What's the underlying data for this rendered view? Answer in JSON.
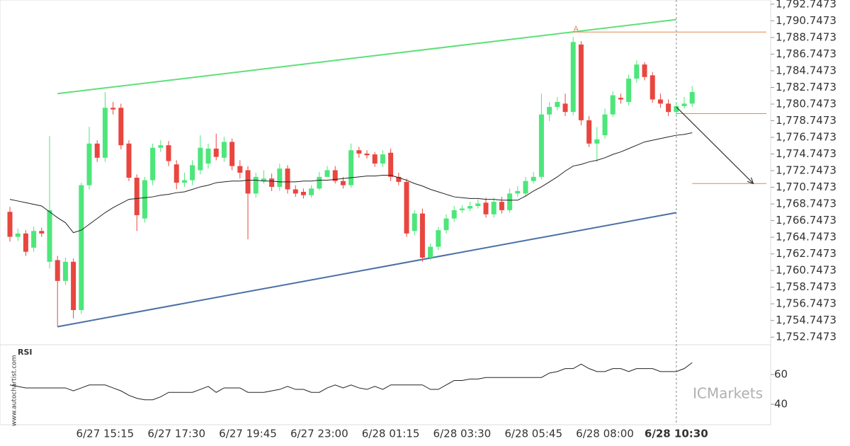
{
  "chart_data": [
    {
      "type": "candlestick",
      "categories": [
        null,
        null,
        null,
        null,
        null,
        null,
        null,
        null,
        null,
        null,
        null,
        null,
        "6/27 15:15",
        null,
        null,
        null,
        null,
        null,
        null,
        null,
        null,
        "6/27 17:30",
        null,
        null,
        null,
        null,
        null,
        null,
        null,
        null,
        "6/27 19:45",
        null,
        null,
        null,
        null,
        null,
        null,
        null,
        null,
        "6/27 23:00",
        null,
        null,
        null,
        null,
        null,
        null,
        null,
        null,
        "6/28 01:15",
        null,
        null,
        null,
        null,
        null,
        null,
        null,
        null,
        "6/28 03:30",
        null,
        null,
        null,
        null,
        null,
        null,
        null,
        null,
        "6/28 05:45",
        null,
        null,
        null,
        null,
        null,
        null,
        null,
        null,
        "6/28 08:00",
        null,
        null,
        null,
        null,
        null,
        null,
        null,
        null,
        "6/28 10:30",
        null,
        null
      ],
      "open": [
        1767.8,
        1764.8,
        1765.2,
        1763.5,
        1765.5,
        1761.8,
        1762.0,
        1759.5,
        1761.8,
        1756.0,
        1771.0,
        1776.0,
        1774.3,
        1780.3,
        1780.3,
        1776.0,
        1771.9,
        1767.0,
        1771.6,
        1775.5,
        1775.8,
        1773.5,
        1771.3,
        1771.6,
        1772.8,
        1773.6,
        1775.4,
        1774.3,
        1776.2,
        1773.3,
        1772.8,
        1770.0,
        1771.5,
        1771.8,
        1770.8,
        1773.0,
        1770.5,
        1770.2,
        1769.8,
        1770.6,
        1772.0,
        1772.8,
        1771.5,
        1771.0,
        1775.2,
        1774.8,
        1774.7,
        1773.6,
        1774.9,
        1772.0,
        1771.4,
        1765.5,
        1767.6,
        1762.3,
        1763.6,
        1765.6,
        1767.0,
        1768.0,
        1768.2,
        1768.5,
        1768.9,
        1767.5,
        1769.0,
        1768.0,
        1770.0,
        1770.0,
        1771.5,
        1772.0,
        1779.5,
        1780.4,
        1780.8,
        1779.8,
        1787.9,
        1778.8,
        1776.0,
        1777.0,
        1779.5,
        1781.5,
        1781.0,
        1783.8,
        1785.5,
        1784.2,
        1781.3,
        1780.8,
        1779.8,
        1780.5,
        1780.8
      ],
      "high": [
        1768.4,
        1765.8,
        1765.6,
        1766.0,
        1765.9,
        1776.9,
        1762.5,
        1762.3,
        1762.2,
        1771.3,
        1778.0,
        1776.4,
        1782.2,
        1781.0,
        1780.8,
        1776.4,
        1772.3,
        1772.0,
        1776.0,
        1776.4,
        1776.3,
        1774.0,
        1772.5,
        1774.0,
        1777.0,
        1776.0,
        1777.2,
        1776.8,
        1776.6,
        1774.0,
        1773.3,
        1772.5,
        1772.8,
        1772.4,
        1773.6,
        1773.4,
        1771.0,
        1770.6,
        1771.0,
        1772.6,
        1773.3,
        1773.3,
        1772.0,
        1776.0,
        1775.6,
        1775.2,
        1775.0,
        1775.2,
        1775.4,
        1772.5,
        1771.8,
        1768.0,
        1768.2,
        1764.0,
        1766.0,
        1767.5,
        1768.5,
        1768.6,
        1769.0,
        1769.3,
        1769.5,
        1769.5,
        1769.6,
        1770.6,
        1770.9,
        1772.0,
        1772.6,
        1782.0,
        1781.0,
        1781.6,
        1782.0,
        1788.8,
        1788.3,
        1779.3,
        1778.0,
        1780.2,
        1782.3,
        1782.0,
        1784.3,
        1786.0,
        1785.8,
        1784.6,
        1782.0,
        1781.3,
        1781.0,
        1781.6,
        1782.9
      ],
      "low": [
        1764.2,
        1764.3,
        1762.5,
        1763.0,
        1764.8,
        1761.0,
        1754.0,
        1759.0,
        1755.0,
        1755.5,
        1770.5,
        1773.8,
        1773.8,
        1779.5,
        1775.3,
        1771.5,
        1765.5,
        1766.5,
        1771.0,
        1775.0,
        1773.3,
        1770.5,
        1770.8,
        1771.0,
        1772.3,
        1773.0,
        1774.0,
        1773.8,
        1772.8,
        1771.8,
        1764.5,
        1769.5,
        1771.2,
        1770.3,
        1770.3,
        1770.0,
        1769.6,
        1769.4,
        1769.5,
        1770.4,
        1772.2,
        1771.2,
        1770.6,
        1770.7,
        1774.3,
        1774.2,
        1773.2,
        1773.2,
        1771.5,
        1771.0,
        1764.8,
        1765.0,
        1761.8,
        1762.0,
        1763.2,
        1765.2,
        1766.6,
        1767.7,
        1767.9,
        1768.2,
        1767.1,
        1767.1,
        1767.6,
        1767.7,
        1769.6,
        1769.6,
        1771.2,
        1771.7,
        1778.7,
        1780.0,
        1779.3,
        1779.4,
        1778.2,
        1775.6,
        1773.8,
        1776.6,
        1779.2,
        1780.8,
        1780.6,
        1783.3,
        1783.6,
        1780.9,
        1780.3,
        1779.3,
        1779.4,
        1780.2,
        1780.4
      ],
      "close": [
        1764.8,
        1765.2,
        1763.0,
        1765.5,
        1765.2,
        1768.0,
        1759.5,
        1761.8,
        1756.0,
        1771.0,
        1776.0,
        1774.3,
        1780.3,
        1780.1,
        1775.8,
        1771.9,
        1767.4,
        1771.6,
        1775.5,
        1775.8,
        1773.9,
        1771.3,
        1771.6,
        1773.4,
        1775.5,
        1775.4,
        1774.4,
        1776.2,
        1773.3,
        1772.5,
        1770.0,
        1772.0,
        1771.8,
        1770.8,
        1773.0,
        1770.5,
        1770.0,
        1769.8,
        1770.6,
        1772.0,
        1772.8,
        1771.5,
        1771.0,
        1775.2,
        1774.8,
        1774.6,
        1773.6,
        1774.7,
        1772.0,
        1771.4,
        1765.2,
        1767.6,
        1762.3,
        1763.6,
        1765.6,
        1767.0,
        1768.0,
        1768.2,
        1768.5,
        1768.8,
        1767.5,
        1769.0,
        1768.0,
        1770.0,
        1770.3,
        1771.5,
        1772.0,
        1779.5,
        1780.4,
        1781.0,
        1779.8,
        1788.2,
        1778.8,
        1776.0,
        1776.5,
        1779.5,
        1781.8,
        1781.3,
        1783.8,
        1785.5,
        1784.0,
        1781.3,
        1780.8,
        1779.8,
        1780.5,
        1780.8,
        1782.2
      ],
      "ma": [
        1769.3,
        1769.1,
        1768.9,
        1768.7,
        1768.5,
        1767.8,
        1767.1,
        1766.5,
        1765.3,
        1765.6,
        1766.3,
        1767.0,
        1767.7,
        1768.3,
        1768.8,
        1769.3,
        1769.4,
        1769.5,
        1769.6,
        1769.8,
        1769.9,
        1770.1,
        1770.2,
        1770.5,
        1770.8,
        1771.0,
        1771.3,
        1771.4,
        1771.5,
        1771.5,
        1771.6,
        1771.6,
        1771.5,
        1771.5,
        1771.4,
        1771.4,
        1771.4,
        1771.5,
        1771.5,
        1771.6,
        1771.6,
        1771.7,
        1771.8,
        1771.9,
        1772.0,
        1772.1,
        1772.1,
        1772.2,
        1772.2,
        1771.9,
        1771.6,
        1771.2,
        1770.9,
        1770.5,
        1770.2,
        1769.9,
        1769.6,
        1769.5,
        1769.4,
        1769.4,
        1769.3,
        1769.3,
        1769.2,
        1769.2,
        1769.2,
        1769.7,
        1770.3,
        1770.8,
        1771.4,
        1772.0,
        1772.7,
        1773.3,
        1773.5,
        1773.8,
        1774.0,
        1774.3,
        1774.7,
        1775.0,
        1775.4,
        1775.8,
        1776.2,
        1776.4,
        1776.6,
        1776.8,
        1777.0,
        1777.1,
        1777.3
      ],
      "up_color": "#4de67a",
      "down_color": "#e8463f",
      "ma_color": "#222222",
      "ylim": [
        1752.0,
        1793.25
      ],
      "yticks": [
        {
          "value": 1752.7473,
          "label": "1,752.7473"
        },
        {
          "value": 1754.7473,
          "label": "1,754.7473"
        },
        {
          "value": 1756.7473,
          "label": "1,756.7473"
        },
        {
          "value": 1758.7473,
          "label": "1,758.7473"
        },
        {
          "value": 1760.7473,
          "label": "1,760.7473"
        },
        {
          "value": 1762.7473,
          "label": "1,762.7473"
        },
        {
          "value": 1764.7473,
          "label": "1,764.7473"
        },
        {
          "value": 1766.7473,
          "label": "1,766.7473"
        },
        {
          "value": 1768.7473,
          "label": "1,768.7473"
        },
        {
          "value": 1770.7473,
          "label": "1,770.7473"
        },
        {
          "value": 1772.7473,
          "label": "1,772.7473"
        },
        {
          "value": 1774.7473,
          "label": "1,774.7473"
        },
        {
          "value": 1776.7473,
          "label": "1,776.7473"
        },
        {
          "value": 1778.7473,
          "label": "1,778.7473"
        },
        {
          "value": 1780.7473,
          "label": "1,780.7473"
        },
        {
          "value": 1782.7473,
          "label": "1,782.7473"
        },
        {
          "value": 1784.7473,
          "label": "1,784.7473"
        },
        {
          "value": 1786.7473,
          "label": "1,786.7473"
        },
        {
          "value": 1788.7473,
          "label": "1,788.7473"
        },
        {
          "value": 1790.7473,
          "label": "1,790.7473"
        },
        {
          "value": 1792.7473,
          "label": "1,792.7473"
        }
      ],
      "trendlines": [
        {
          "from": 6,
          "to": 84,
          "values": [
            1782.0,
            1790.9
          ],
          "color": "#5ee07a"
        },
        {
          "from": 6,
          "to": 84,
          "values": [
            1754.0,
            1767.7
          ],
          "color": "#4a6fa5"
        }
      ],
      "levels": [
        {
          "value": 1789.4,
          "from": 71,
          "color": "#e08a4a"
        },
        {
          "value": 1779.6,
          "from": 84,
          "color": "#e08a4a"
        },
        {
          "value": 1771.2,
          "from": 86,
          "color": "#e08a4a"
        }
      ],
      "arrow": {
        "from": [
          84,
          1780.4
        ],
        "to": [
          93.7,
          1771.2
        ]
      },
      "annotation": {
        "label": "A",
        "index": 71,
        "value": 1789.4
      },
      "current_index": 84
    },
    {
      "type": "line",
      "title": "RSI",
      "values": [
        53,
        52,
        51,
        51,
        51,
        51,
        51,
        51,
        49,
        51,
        53,
        53,
        53,
        51,
        49,
        46,
        44,
        43,
        43,
        45,
        48,
        48,
        48,
        48,
        50,
        52,
        48,
        51,
        51,
        51,
        48,
        48,
        48,
        49,
        50,
        52,
        50,
        50,
        48,
        48,
        51,
        53,
        51,
        53,
        51,
        50,
        52,
        50,
        53,
        53,
        53,
        53,
        53,
        50,
        50,
        53,
        56,
        56,
        57,
        57,
        58,
        58,
        58,
        58,
        58,
        58,
        58,
        58,
        61,
        62,
        64,
        64,
        67,
        64,
        62,
        62,
        64,
        64,
        62,
        64,
        64,
        64,
        62,
        62,
        62,
        64,
        68
      ],
      "color": "#222222",
      "ylim": [
        26.2,
        78.6
      ],
      "yticks": [
        40,
        60
      ]
    }
  ],
  "watermarks": {
    "brand": "ICMarkets",
    "site": "www.autochartist.com"
  }
}
